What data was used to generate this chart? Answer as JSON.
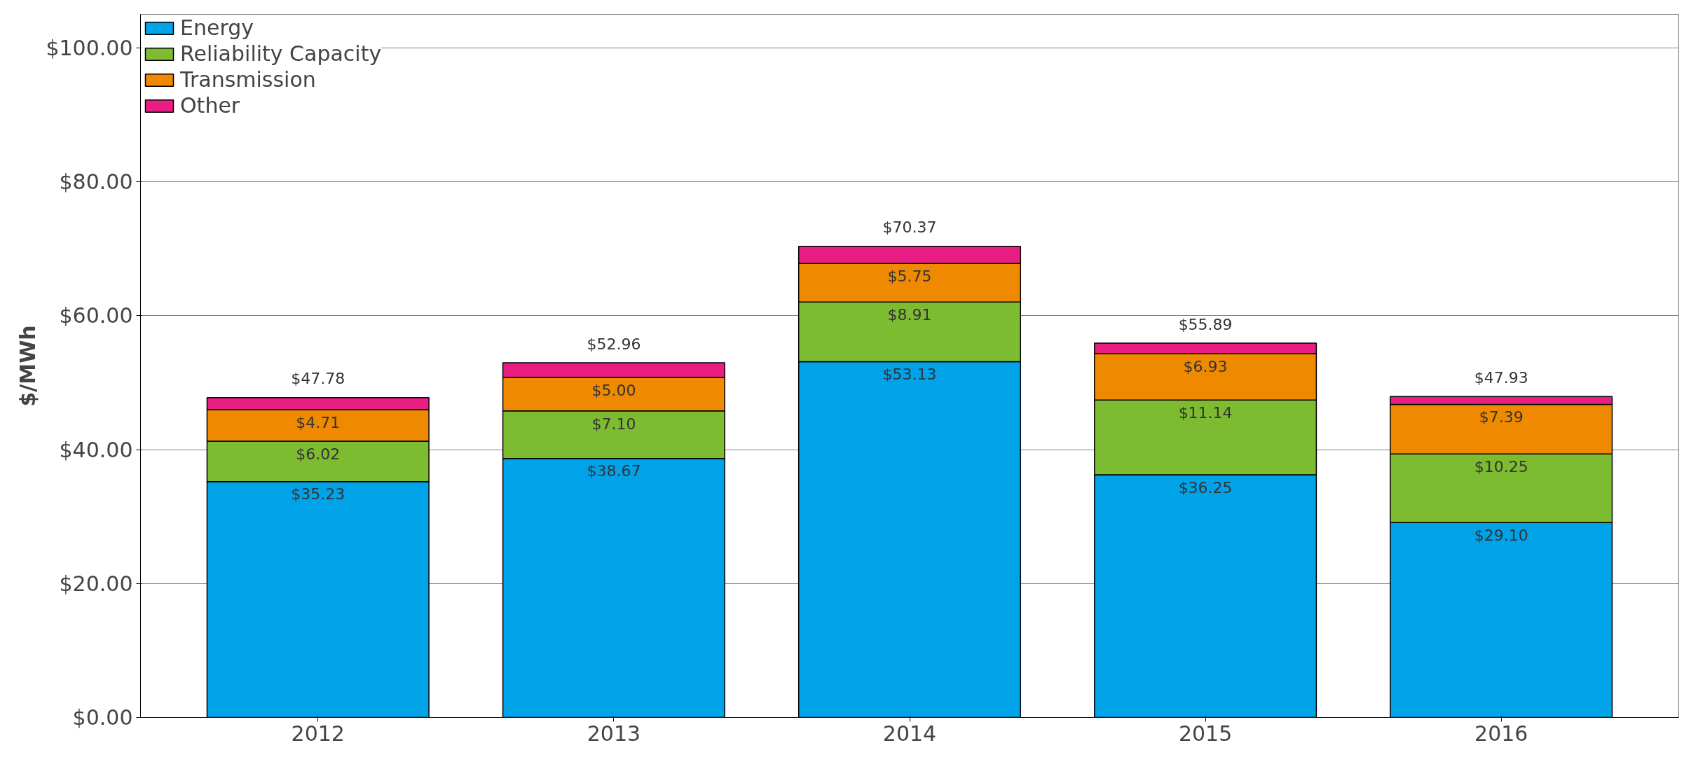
{
  "chart_data": {
    "type": "bar",
    "stacked": true,
    "ylabel": "$/MWh",
    "categories": [
      "2012",
      "2013",
      "2014",
      "2015",
      "2016"
    ],
    "series": [
      {
        "name": "Energy",
        "color": "#00a2e8",
        "values": [
          35.23,
          38.67,
          53.13,
          36.25,
          29.1
        ],
        "value_labels": [
          "$35.23",
          "$38.67",
          "$53.13",
          "$36.25",
          "$29.10"
        ]
      },
      {
        "name": "Reliability Capacity",
        "color": "#7dbb31",
        "values": [
          6.02,
          7.1,
          8.91,
          11.14,
          10.25
        ],
        "value_labels": [
          "$6.02",
          "$7.10",
          "$8.91",
          "$11.14",
          "$10.25"
        ]
      },
      {
        "name": "Transmission",
        "color": "#ef8a00",
        "values": [
          4.71,
          5.0,
          5.75,
          6.93,
          7.39
        ],
        "value_labels": [
          "$4.71",
          "$5.00",
          "$5.75",
          "$6.93",
          "$7.39"
        ]
      },
      {
        "name": "Other",
        "color": "#e91e82",
        "values": [
          1.82,
          2.19,
          2.58,
          1.57,
          1.19
        ]
      }
    ],
    "totals": [
      "$47.78",
      "$52.96",
      "$70.37",
      "$55.89",
      "$47.93"
    ],
    "ylim": [
      0,
      105
    ],
    "yticks": [
      {
        "value": 0,
        "label": "$0.00"
      },
      {
        "value": 20,
        "label": "$20.00"
      },
      {
        "value": 40,
        "label": "$40.00"
      },
      {
        "value": 60,
        "label": "$60.00"
      },
      {
        "value": 80,
        "label": "$80.00"
      },
      {
        "value": 100,
        "label": "$100.00"
      }
    ],
    "grid": "y",
    "legend": "top left"
  }
}
